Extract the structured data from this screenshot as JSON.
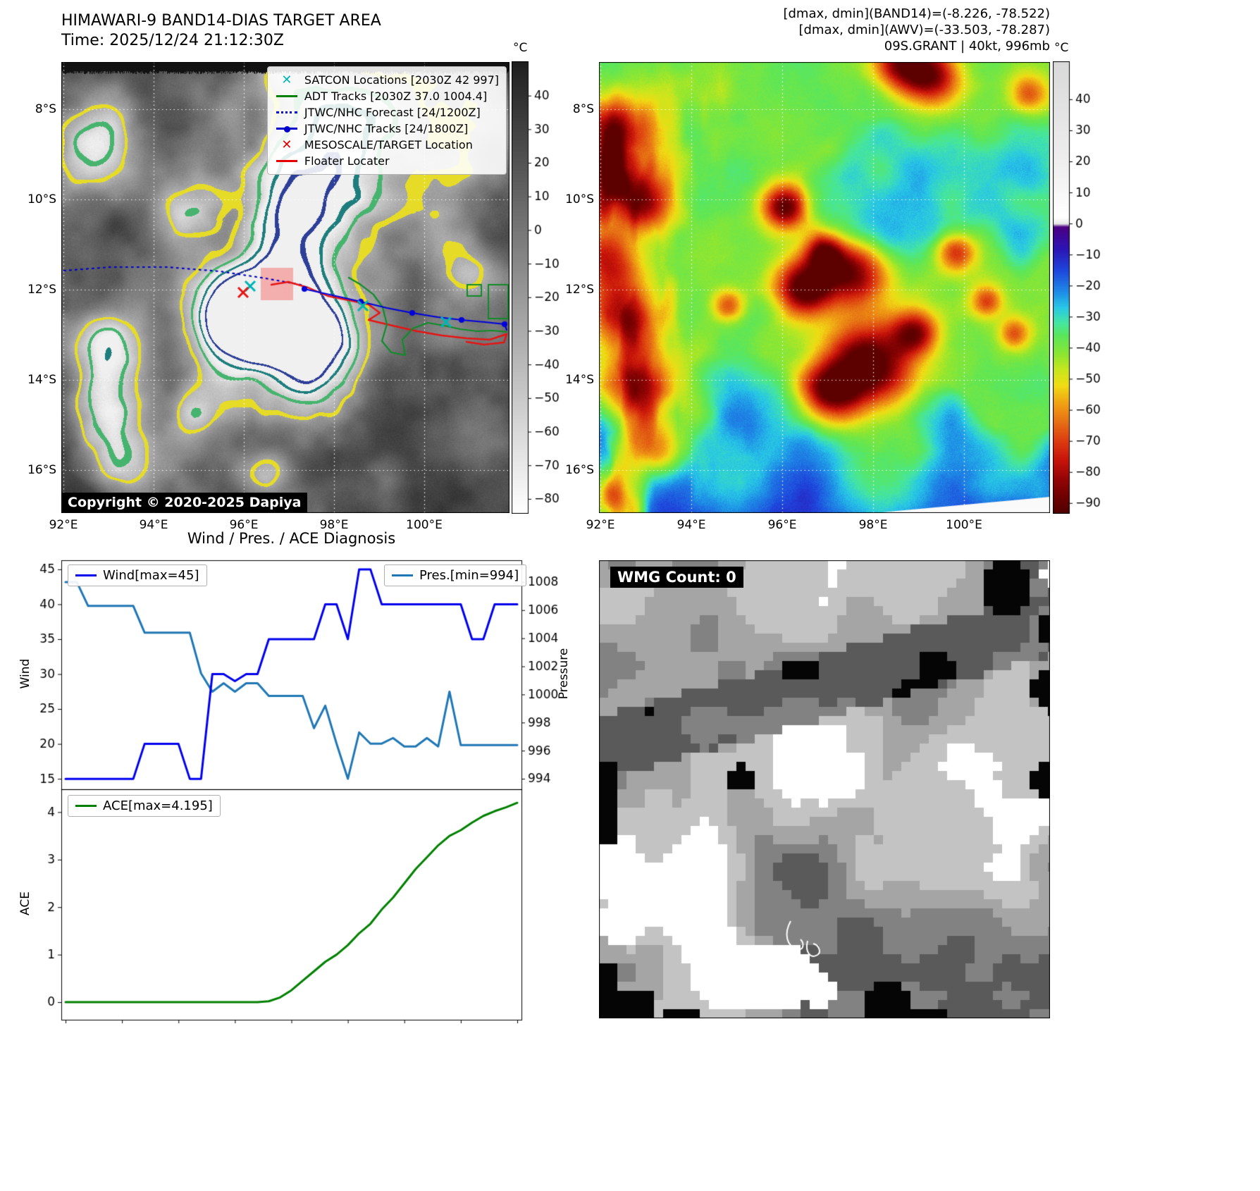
{
  "band14": {
    "title": "HIMAWARI-9 BAND14-DIAS TARGET AREA",
    "time": "Time: 2025/12/24 21:12:30Z",
    "copyright": "Copyright © 2020-2025 Dapiya",
    "legend": [
      {
        "marker": "satcon-x",
        "color": "#00b4b4",
        "label": "SATCON Locations [2030Z 42 997]"
      },
      {
        "marker": "adt-line",
        "color": "#008000",
        "label": "ADT Tracks [2030Z 37.0 1004.4]"
      },
      {
        "marker": "forecast-dotted",
        "color": "#0000cc",
        "label": "JTWC/NHC Forecast [24/1200Z]"
      },
      {
        "marker": "jtwc-line-dot",
        "color": "#0000cc",
        "label": "JTWC/NHC Tracks [24/1800Z]"
      },
      {
        "marker": "mesoscale-x",
        "color": "#e60000",
        "label": "MESOSCALE/TARGET Location"
      },
      {
        "marker": "floater-line",
        "color": "#e60000",
        "label": "Floater Locater"
      }
    ],
    "lat_ticks": [
      "8°S",
      "10°S",
      "12°S",
      "14°S",
      "16°S"
    ],
    "lon_ticks": [
      "92°E",
      "94°E",
      "96°E",
      "98°E",
      "100°E"
    ],
    "colorbar": {
      "unit": "°C",
      "ticks": [
        40,
        30,
        20,
        10,
        0,
        -10,
        -20,
        -30,
        -40,
        -50,
        -60,
        -70,
        -80
      ],
      "vmax": 50,
      "vmin": -84,
      "stops": [
        [
          50,
          "#1e1e1e"
        ],
        [
          -20,
          "#9a9a9a"
        ],
        [
          -84,
          "#ffffff"
        ]
      ]
    }
  },
  "awv": {
    "header": {
      "line1": "[dmax, dmin](BAND14)=(-8.226, -78.522)",
      "line2": "[dmax, dmin](AWV)=(-33.503, -78.287)",
      "line3": "09S.GRANT | 40kt, 996mb"
    },
    "lat_ticks": [
      "8°S",
      "10°S",
      "12°S",
      "14°S",
      "16°S"
    ],
    "lon_ticks": [
      "92°E",
      "94°E",
      "96°E",
      "98°E",
      "100°E"
    ],
    "colorbar": {
      "unit": "°C",
      "ticks": [
        40,
        30,
        20,
        10,
        0,
        -10,
        -20,
        -30,
        -40,
        -50,
        -60,
        -70,
        -80,
        -90
      ],
      "vmax": 52,
      "vmin": -93,
      "stops": [
        [
          52,
          "#d9d9d9"
        ],
        [
          20,
          "#eeeeee"
        ],
        [
          2,
          "#ffffff"
        ],
        [
          0,
          "#e6e6e6"
        ],
        [
          -1,
          "#4b0082"
        ],
        [
          -8,
          "#2d14b4"
        ],
        [
          -15,
          "#1e46dc"
        ],
        [
          -22,
          "#1e8ce6"
        ],
        [
          -27,
          "#28c8e6"
        ],
        [
          -32,
          "#46e6a0"
        ],
        [
          -36,
          "#5ae65a"
        ],
        [
          -42,
          "#8ce632"
        ],
        [
          -47,
          "#c8e61e"
        ],
        [
          -52,
          "#f0dc14"
        ],
        [
          -58,
          "#f0a014"
        ],
        [
          -64,
          "#e66e14"
        ],
        [
          -70,
          "#dc3c10"
        ],
        [
          -76,
          "#c8140a"
        ],
        [
          -82,
          "#960505"
        ],
        [
          -88,
          "#6e0000"
        ],
        [
          -93,
          "#500000"
        ]
      ]
    }
  },
  "wmg": {
    "label": "WMG Count: 0"
  },
  "chart_data": [
    {
      "type": "line",
      "title": "Wind / Pres. / ACE Diagnosis",
      "legend": [
        "Wind[max=45]",
        "Pres.[min=994]"
      ],
      "ylabel_left": "Wind",
      "ylabel_right": "Pressure",
      "ylim_left": [
        13.5,
        46.3
      ],
      "yticks_left": [
        15,
        20,
        25,
        30,
        35,
        40,
        45
      ],
      "ylim_right": [
        993.25,
        1009.55
      ],
      "yticks_right": [
        994,
        996,
        998,
        1000,
        1002,
        1004,
        1006,
        1008
      ],
      "wind_max": 45,
      "pres_min": 994,
      "series": [
        {
          "name": "Wind",
          "axis": "left",
          "color": "#0000ee",
          "values": [
            15,
            15,
            15,
            15,
            15,
            15,
            15,
            20,
            20,
            20,
            20,
            15,
            15,
            30,
            30,
            29,
            30,
            30,
            35,
            35,
            35,
            35,
            35,
            40,
            40,
            35,
            45,
            45,
            40,
            40,
            40,
            40,
            40,
            40,
            40,
            40,
            35,
            35,
            40,
            40,
            40
          ]
        },
        {
          "name": "Pressure",
          "axis": "right",
          "color": "#1f77b4",
          "values": [
            1008,
            1008,
            1006.3,
            1006.3,
            1006.3,
            1006.3,
            1006.3,
            1004.4,
            1004.4,
            1004.4,
            1004.4,
            1004.4,
            1001.5,
            1000.2,
            1000.8,
            1000.2,
            1000.8,
            1000.8,
            999.9,
            999.9,
            999.9,
            999.9,
            997.6,
            999.2,
            996.5,
            994,
            997.3,
            996.5,
            996.5,
            996.9,
            996.3,
            996.3,
            996.9,
            996.3,
            1000.2,
            996.4,
            996.4,
            996.4,
            996.4,
            996.4,
            996.4
          ]
        }
      ]
    },
    {
      "type": "line",
      "legend": [
        "ACE[max=4.195]"
      ],
      "ylabel": "ACE",
      "ylim": [
        -0.37,
        4.48
      ],
      "yticks": [
        0,
        1,
        2,
        3,
        4
      ],
      "ace_max": 4.195,
      "series": [
        {
          "name": "ACE",
          "color": "#008000",
          "values": [
            0,
            0,
            0,
            0,
            0,
            0,
            0,
            0,
            0,
            0,
            0,
            0,
            0,
            0,
            0,
            0,
            0,
            0,
            0.02,
            0.1,
            0.25,
            0.45,
            0.65,
            0.85,
            1.0,
            1.2,
            1.45,
            1.65,
            1.95,
            2.2,
            2.5,
            2.8,
            3.05,
            3.3,
            3.5,
            3.62,
            3.78,
            3.92,
            4.02,
            4.1,
            4.195
          ]
        }
      ]
    }
  ]
}
